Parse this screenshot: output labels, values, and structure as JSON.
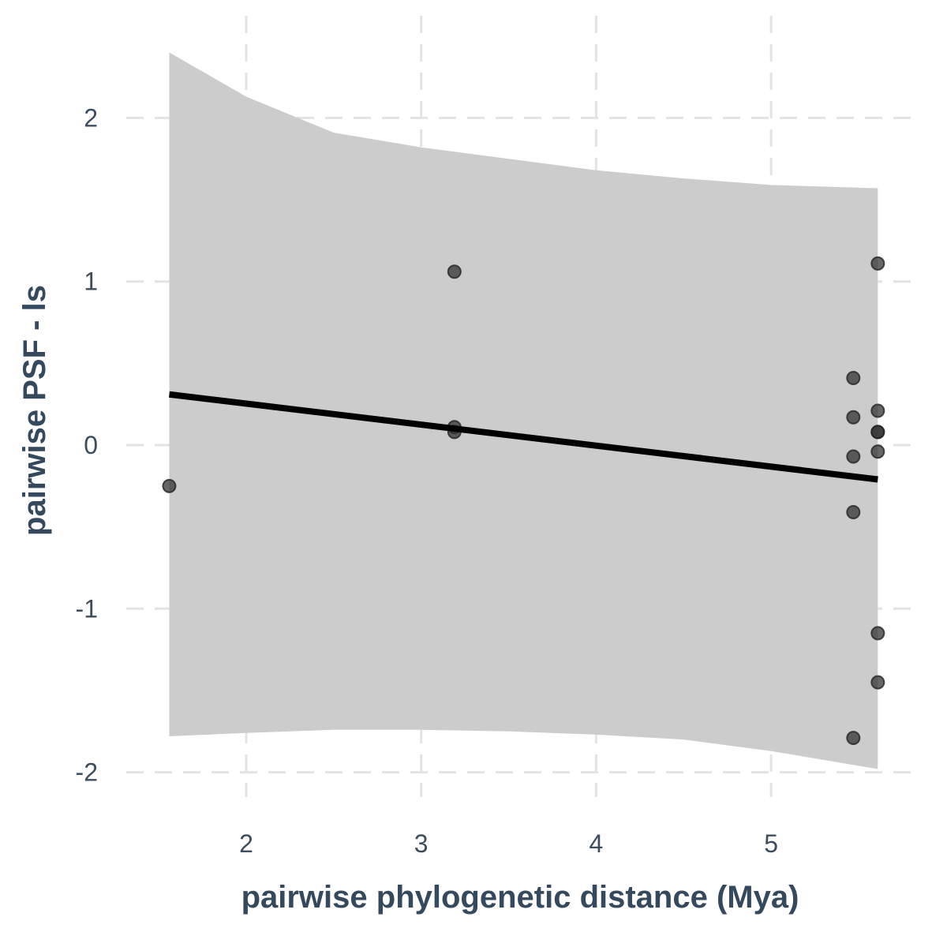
{
  "chart_data": {
    "type": "scatter",
    "title": "",
    "xlabel": "pairwise phylogenetic distance (Mya)",
    "ylabel": "pairwise PSF - ls",
    "xlim": [
      1.3,
      5.8
    ],
    "ylim": [
      -2.2,
      2.55
    ],
    "grid": true,
    "legend": "none",
    "x_ticks": [
      {
        "value": 2,
        "label": "2"
      },
      {
        "value": 3,
        "label": "3"
      },
      {
        "value": 4,
        "label": "4"
      },
      {
        "value": 5,
        "label": "5"
      }
    ],
    "y_ticks": [
      {
        "value": -2,
        "label": "-2"
      },
      {
        "value": -1,
        "label": "-1"
      },
      {
        "value": 0,
        "label": "0"
      },
      {
        "value": 1,
        "label": "1"
      },
      {
        "value": 2,
        "label": "2"
      }
    ],
    "points": [
      {
        "x": 1.56,
        "y": -0.25
      },
      {
        "x": 3.19,
        "y": 1.06
      },
      {
        "x": 3.19,
        "y": 0.11
      },
      {
        "x": 3.19,
        "y": 0.08
      },
      {
        "x": 5.47,
        "y": 0.41
      },
      {
        "x": 5.47,
        "y": 0.17
      },
      {
        "x": 5.47,
        "y": -0.07
      },
      {
        "x": 5.47,
        "y": -0.41
      },
      {
        "x": 5.47,
        "y": -1.79
      },
      {
        "x": 5.61,
        "y": 1.11
      },
      {
        "x": 5.61,
        "y": 0.21
      },
      {
        "x": 5.61,
        "y": 0.08
      },
      {
        "x": 5.61,
        "y": 0.08
      },
      {
        "x": 5.61,
        "y": -0.04
      },
      {
        "x": 5.61,
        "y": -1.15
      },
      {
        "x": 5.61,
        "y": -1.45
      }
    ],
    "trend_line": {
      "x": [
        1.56,
        5.61
      ],
      "y": [
        0.31,
        -0.21
      ]
    },
    "confidence_band": {
      "x": [
        1.56,
        2.0,
        2.5,
        3.0,
        3.5,
        4.0,
        4.5,
        5.0,
        5.61
      ],
      "upper": [
        2.4,
        2.13,
        1.91,
        1.82,
        1.75,
        1.68,
        1.63,
        1.59,
        1.57
      ],
      "lower": [
        -1.78,
        -1.76,
        -1.74,
        -1.74,
        -1.75,
        -1.77,
        -1.8,
        -1.87,
        -1.98
      ]
    },
    "colors": {
      "points": "#333333",
      "point_stroke": "#222222",
      "line": "#000000",
      "band": "#cccccc",
      "grid": "#e3e3e3",
      "text": "#3d4d5c",
      "title_text": "#34495e"
    }
  }
}
